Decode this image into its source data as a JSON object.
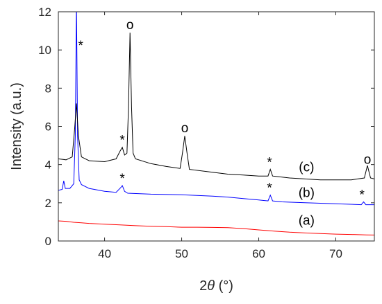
{
  "chart_data": {
    "type": "line",
    "title": "",
    "xlabel_prefix": "2",
    "xlabel_symbol": "θ",
    "xlabel_suffix": " (°)",
    "ylabel": "Intensity (a.u.)",
    "xlim": [
      34,
      75
    ],
    "ylim": [
      0,
      12
    ],
    "xticks": [
      40,
      50,
      60,
      70
    ],
    "yticks": [
      0,
      2,
      4,
      6,
      8,
      10,
      12
    ],
    "grid": false,
    "series": [
      {
        "name": "(a)",
        "color": "#ff0000",
        "points": [
          [
            34,
            1.05
          ],
          [
            35,
            1.03
          ],
          [
            36,
            0.98
          ],
          [
            37,
            0.95
          ],
          [
            38,
            0.92
          ],
          [
            40,
            0.88
          ],
          [
            42,
            0.84
          ],
          [
            44,
            0.8
          ],
          [
            46,
            0.77
          ],
          [
            48,
            0.75
          ],
          [
            50,
            0.72
          ],
          [
            52,
            0.72
          ],
          [
            54,
            0.71
          ],
          [
            56,
            0.7
          ],
          [
            58,
            0.65
          ],
          [
            60,
            0.58
          ],
          [
            62,
            0.52
          ],
          [
            64,
            0.46
          ],
          [
            66,
            0.42
          ],
          [
            68,
            0.39
          ],
          [
            70,
            0.36
          ],
          [
            72,
            0.34
          ],
          [
            74,
            0.32
          ],
          [
            75,
            0.31
          ]
        ]
      },
      {
        "name": "(b)",
        "color": "#0000ff",
        "points": [
          [
            34,
            2.65
          ],
          [
            34.5,
            2.7
          ],
          [
            34.7,
            3.15
          ],
          [
            34.9,
            2.75
          ],
          [
            35.5,
            2.75
          ],
          [
            36,
            3.0
          ],
          [
            36.2,
            5.5
          ],
          [
            36.35,
            12.5
          ],
          [
            36.5,
            5.5
          ],
          [
            36.7,
            3.2
          ],
          [
            37,
            2.95
          ],
          [
            38,
            2.75
          ],
          [
            40,
            2.6
          ],
          [
            41.5,
            2.55
          ],
          [
            42.1,
            2.8
          ],
          [
            42.3,
            2.9
          ],
          [
            42.6,
            2.6
          ],
          [
            43,
            2.5
          ],
          [
            46,
            2.45
          ],
          [
            50,
            2.42
          ],
          [
            54,
            2.35
          ],
          [
            56,
            2.3
          ],
          [
            58,
            2.22
          ],
          [
            60,
            2.15
          ],
          [
            61.2,
            2.1
          ],
          [
            61.5,
            2.4
          ],
          [
            61.8,
            2.1
          ],
          [
            63,
            2.05
          ],
          [
            66,
            2.0
          ],
          [
            70,
            1.95
          ],
          [
            73.3,
            1.9
          ],
          [
            73.6,
            2.05
          ],
          [
            73.9,
            1.9
          ],
          [
            75,
            1.9
          ]
        ]
      },
      {
        "name": "(c)",
        "color": "#000000",
        "points": [
          [
            34,
            4.3
          ],
          [
            35,
            4.25
          ],
          [
            35.8,
            4.4
          ],
          [
            36.1,
            5.8
          ],
          [
            36.35,
            7.2
          ],
          [
            36.6,
            5.5
          ],
          [
            37,
            4.4
          ],
          [
            38,
            4.2
          ],
          [
            40,
            4.15
          ],
          [
            41.5,
            4.3
          ],
          [
            42,
            4.7
          ],
          [
            42.3,
            4.9
          ],
          [
            42.6,
            4.5
          ],
          [
            42.9,
            4.6
          ],
          [
            43.1,
            7.0
          ],
          [
            43.3,
            10.9
          ],
          [
            43.5,
            7.0
          ],
          [
            43.7,
            4.6
          ],
          [
            44,
            4.3
          ],
          [
            46,
            4.05
          ],
          [
            48,
            3.9
          ],
          [
            49.8,
            3.8
          ],
          [
            50.1,
            4.6
          ],
          [
            50.4,
            5.5
          ],
          [
            50.7,
            4.6
          ],
          [
            51,
            3.75
          ],
          [
            54,
            3.6
          ],
          [
            56,
            3.5
          ],
          [
            58,
            3.45
          ],
          [
            60,
            3.4
          ],
          [
            61.2,
            3.4
          ],
          [
            61.5,
            3.75
          ],
          [
            61.8,
            3.4
          ],
          [
            64,
            3.3
          ],
          [
            66,
            3.25
          ],
          [
            68,
            3.2
          ],
          [
            70,
            3.2
          ],
          [
            72,
            3.2
          ],
          [
            73.7,
            3.3
          ],
          [
            74.1,
            3.95
          ],
          [
            74.5,
            3.3
          ],
          [
            75,
            3.25
          ]
        ]
      }
    ],
    "annotations": [
      {
        "text": "*",
        "x": 36.9,
        "y": 10.0
      },
      {
        "text": "o",
        "x": 43.3,
        "y": 11.1
      },
      {
        "text": "*",
        "x": 42.3,
        "y": 5.05
      },
      {
        "text": "o",
        "x": 50.4,
        "y": 5.7
      },
      {
        "text": "*",
        "x": 61.4,
        "y": 3.9
      },
      {
        "text": "o",
        "x": 74.1,
        "y": 4.05
      },
      {
        "text": "*",
        "x": 42.3,
        "y": 3.05
      },
      {
        "text": "*",
        "x": 61.4,
        "y": 2.55
      },
      {
        "text": "*",
        "x": 73.4,
        "y": 2.2
      },
      {
        "text": "(c)",
        "x": 66.2,
        "y": 3.65
      },
      {
        "text": "(b)",
        "x": 66.2,
        "y": 2.3
      },
      {
        "text": "(a)",
        "x": 66.2,
        "y": 0.85
      }
    ]
  }
}
